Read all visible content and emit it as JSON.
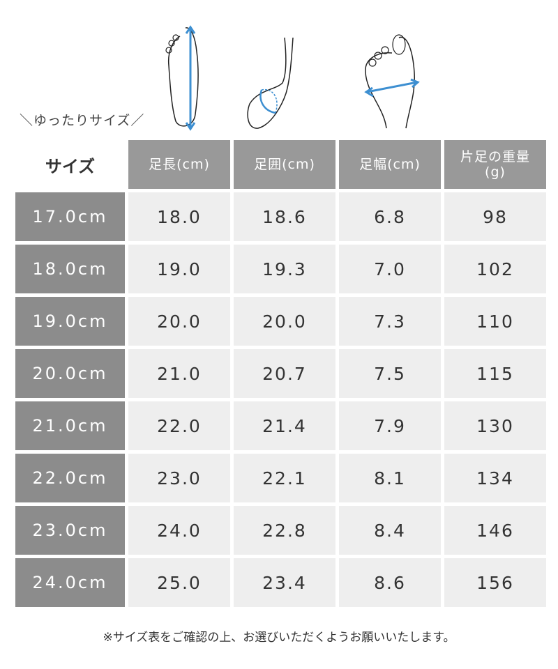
{
  "caption": "＼ゆったりサイズ／",
  "illustrations": [
    {
      "icon": "foot-length-icon",
      "label": "足長"
    },
    {
      "icon": "foot-girth-icon",
      "label": "足囲"
    },
    {
      "icon": "foot-width-icon",
      "label": "足幅"
    }
  ],
  "colors": {
    "header": "#999999",
    "size_column": "#8c8c8c",
    "cell": "#eeeeee",
    "arrow": "#3d8fd1"
  },
  "table": {
    "corner": "サイズ",
    "headers": [
      "足長(cm)",
      "足囲(cm)",
      "足幅(cm)",
      "片足の重量\n(g)"
    ],
    "rows": [
      {
        "size": "17.0cm",
        "values": [
          "18.0",
          "18.6",
          "6.8",
          "98"
        ]
      },
      {
        "size": "18.0cm",
        "values": [
          "19.0",
          "19.3",
          "7.0",
          "102"
        ]
      },
      {
        "size": "19.0cm",
        "values": [
          "20.0",
          "20.0",
          "7.3",
          "110"
        ]
      },
      {
        "size": "20.0cm",
        "values": [
          "21.0",
          "20.7",
          "7.5",
          "115"
        ]
      },
      {
        "size": "21.0cm",
        "values": [
          "22.0",
          "21.4",
          "7.9",
          "130"
        ]
      },
      {
        "size": "22.0cm",
        "values": [
          "23.0",
          "22.1",
          "8.1",
          "134"
        ]
      },
      {
        "size": "23.0cm",
        "values": [
          "24.0",
          "22.8",
          "8.4",
          "146"
        ]
      },
      {
        "size": "24.0cm",
        "values": [
          "25.0",
          "23.4",
          "8.6",
          "156"
        ]
      }
    ]
  },
  "note": "※サイズ表をご確認の上、お選びいただくようお願いいたします。"
}
